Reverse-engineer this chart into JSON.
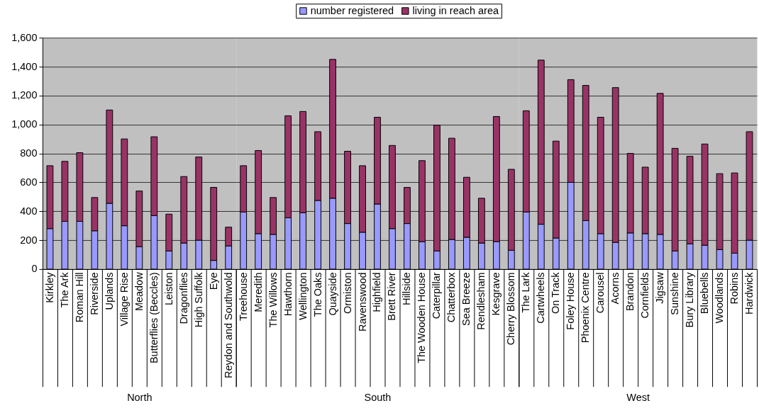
{
  "chart_data": [
    {
      "type": "bar",
      "stacked": true,
      "xlabel": "North",
      "legend": "top",
      "grid": "y",
      "categories": [
        "Kirkley",
        "The Ark",
        "Roman Hill",
        "Riverside",
        "Uplands",
        "Village Rise",
        "Meadow",
        "Butterflies (Beccles)",
        "Leiston",
        "Dragonflies",
        "High Suffolk",
        "Eye",
        "Reydon and Southwold"
      ],
      "series": [
        {
          "name": "number registered",
          "color": "#9999ff",
          "values": [
            280,
            330,
            330,
            265,
            455,
            300,
            155,
            370,
            125,
            180,
            200,
            60,
            160
          ]
        },
        {
          "name": "living in reach area",
          "color": "#993366",
          "values": [
            435,
            415,
            475,
            230,
            645,
            600,
            385,
            545,
            255,
            460,
            575,
            505,
            130
          ]
        }
      ],
      "ylim": [
        0,
        1600
      ],
      "yticks": [
        0,
        200,
        400,
        600,
        800,
        {
          "value": 1000,
          "label": "1,000"
        },
        {
          "value": 1200,
          "label": "1,200"
        },
        {
          "value": 1400,
          "label": "1,400"
        },
        {
          "value": 1600,
          "label": "1,600"
        }
      ]
    },
    {
      "type": "bar",
      "stacked": true,
      "xlabel": "South",
      "grid": "y",
      "tick_labels": "x",
      "categories": [
        "Treehouse",
        "Meredith",
        "The Willows",
        "Hawthorn",
        "Wellington",
        "The Oaks",
        "Quayside",
        "Ormiston",
        "Ravenswood",
        "Highfield",
        "Brett River",
        "Hillside",
        "The Wooden House",
        "Caterpillar",
        "Chatterbox",
        "Sea Breeze",
        "Rendlesham",
        "Kesgrave",
        "Cherry Blossom"
      ],
      "series": [
        {
          "name": "number registered",
          "color": "#9999ff",
          "values": [
            395,
            245,
            240,
            355,
            390,
            475,
            490,
            315,
            255,
            450,
            280,
            315,
            190,
            125,
            205,
            220,
            180,
            190,
            130
          ]
        },
        {
          "name": "living in reach area",
          "color": "#993366",
          "values": [
            320,
            575,
            255,
            705,
            700,
            475,
            960,
            500,
            460,
            600,
            575,
            250,
            560,
            870,
            700,
            415,
            310,
            865,
            560
          ]
        }
      ],
      "ylim": [
        0,
        1600
      ],
      "yticks": [
        0,
        200,
        400,
        600,
        800,
        1000,
        1200,
        1400,
        1600
      ]
    },
    {
      "type": "bar",
      "stacked": true,
      "xlabel": "West",
      "grid": "y",
      "tick_labels": "x",
      "categories": [
        "The Lark",
        "Cartwheels",
        "On Track",
        "Foley House",
        "Phoenix Centre",
        "Carousel",
        "Acorns",
        "Brandon",
        "Cornfields",
        "Jigsaw",
        "Sunshine",
        "Bury Library",
        "Bluebells",
        "Woodlands",
        "Robins",
        "Hardwick"
      ],
      "series": [
        {
          "name": "number registered",
          "color": "#9999ff",
          "values": [
            395,
            310,
            215,
            600,
            335,
            245,
            185,
            250,
            245,
            240,
            125,
            175,
            165,
            135,
            110,
            200
          ]
        },
        {
          "name": "living in reach area",
          "color": "#993366",
          "values": [
            700,
            1135,
            670,
            710,
            935,
            805,
            1070,
            550,
            460,
            975,
            710,
            605,
            700,
            525,
            555,
            750
          ]
        }
      ],
      "ylim": [
        0,
        1600
      ],
      "yticks": [
        0,
        200,
        400,
        600,
        800,
        1000,
        1200,
        1400,
        1600
      ]
    }
  ]
}
